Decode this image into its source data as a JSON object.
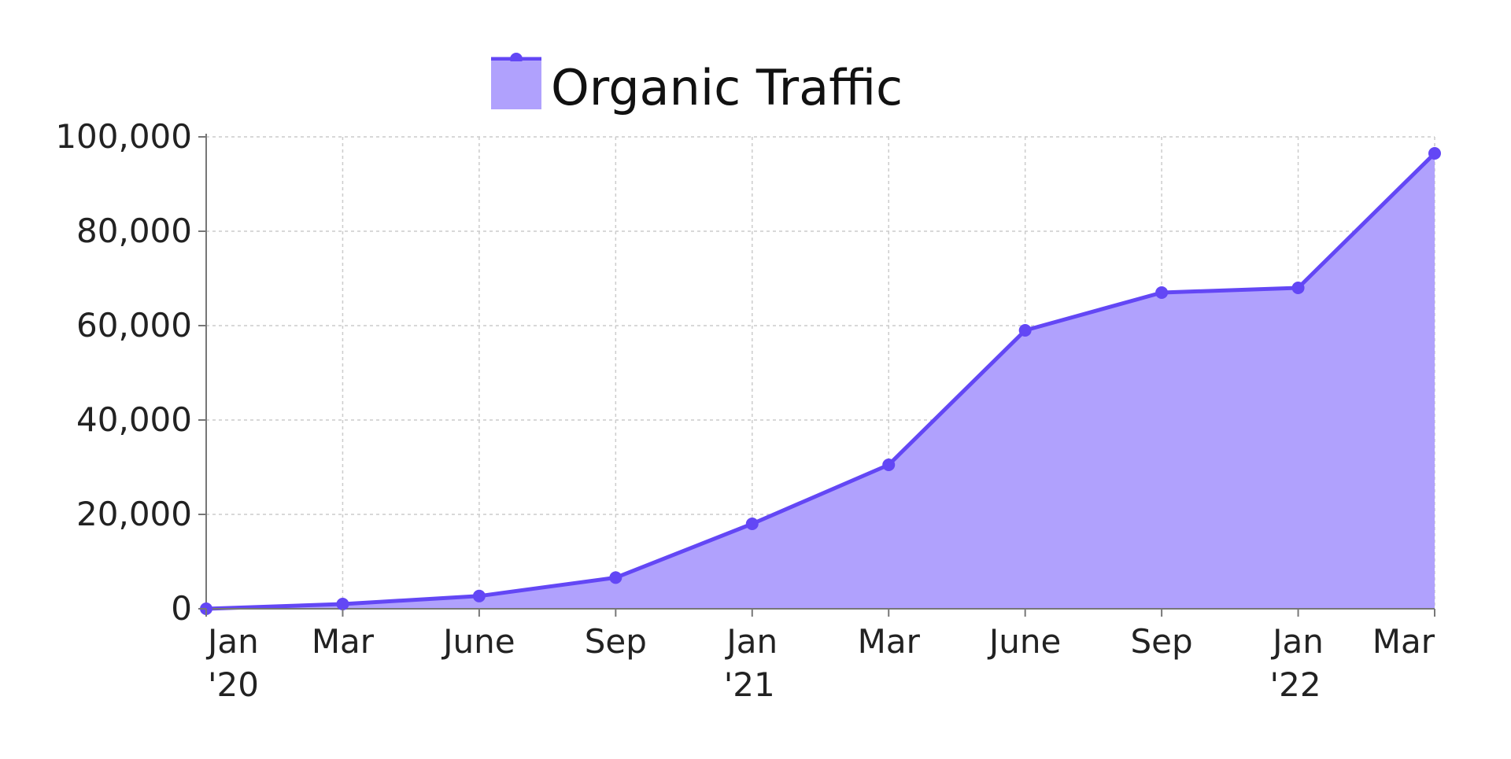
{
  "chart_data": {
    "type": "area",
    "x_ticks": [
      {
        "line1": "Jan",
        "line2": "'20"
      },
      {
        "line1": "Mar",
        "line2": ""
      },
      {
        "line1": "June",
        "line2": ""
      },
      {
        "line1": "Sep",
        "line2": ""
      },
      {
        "line1": "Jan",
        "line2": "'21"
      },
      {
        "line1": "Mar",
        "line2": ""
      },
      {
        "line1": "June",
        "line2": ""
      },
      {
        "line1": "Sep",
        "line2": ""
      },
      {
        "line1": "Jan",
        "line2": "'22"
      },
      {
        "line1": "Mar",
        "line2": ""
      }
    ],
    "y_ticks": [
      "0",
      "20,000",
      "40,000",
      "60,000",
      "80,000",
      "100,000"
    ],
    "ylim": [
      0,
      100000
    ],
    "grid": true,
    "legend_position": "top-center",
    "series": [
      {
        "name": "Organic Traffic",
        "x": [
          "Jan 2020",
          "Mar 2020",
          "Jun 2020",
          "Sep 2020",
          "Jan 2021",
          "Mar 2021",
          "Jun 2021",
          "Sep 2021",
          "Jan 2022",
          "Mar 2022"
        ],
        "values": [
          0,
          1000,
          2700,
          6600,
          18000,
          30500,
          59000,
          67000,
          68000,
          96500
        ],
        "line_color": "#6347f5",
        "fill_color": "#b0a1fd"
      }
    ]
  }
}
